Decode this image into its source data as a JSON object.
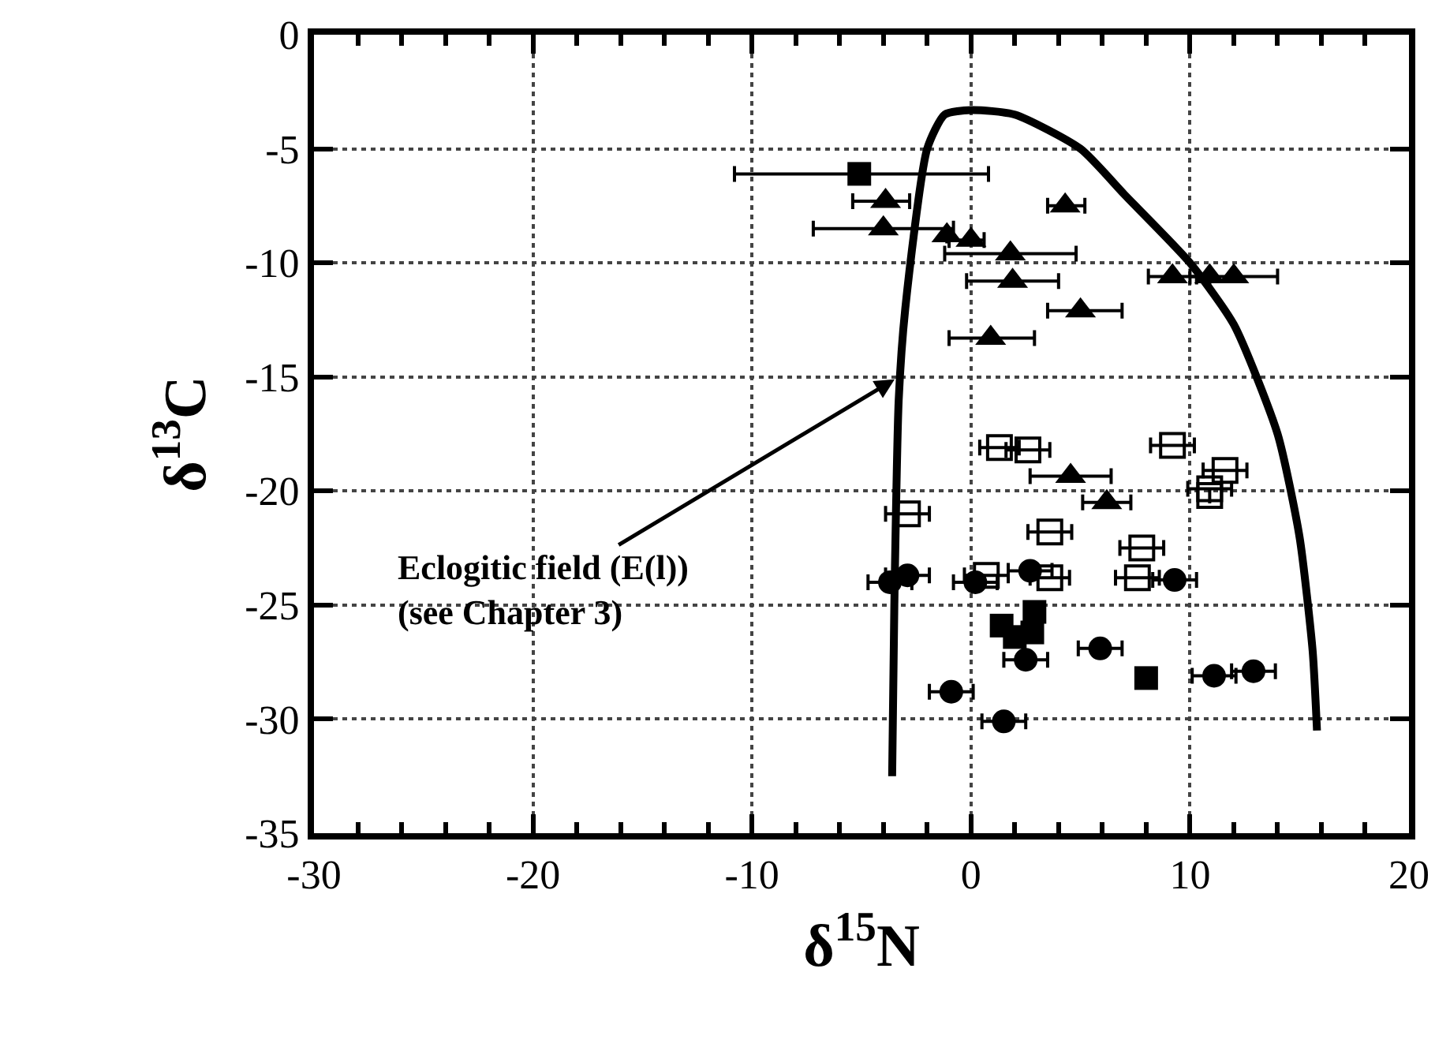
{
  "chart_data": {
    "type": "scatter",
    "xlabel": "δ$^{15}$N",
    "ylabel": "δ$^{13}$C",
    "xlim": [
      -30,
      20
    ],
    "xticks": [
      -30,
      -20,
      -10,
      0,
      10,
      20
    ],
    "ylim": [
      -35,
      0
    ],
    "yticks": [
      0,
      -5,
      -10,
      -15,
      -20,
      -25,
      -30,
      -35
    ],
    "grid": true,
    "annotations": [
      {
        "text": "Eclogitic field (E(l))\n(see Chapter 3)",
        "x": -3.3,
        "y": -15
      }
    ],
    "series": [
      {
        "marker": "triangle",
        "color": "#000000",
        "x": [
          -3.9,
          -4.0,
          -1.1,
          0.0,
          4.3,
          1.8,
          1.9,
          5.0,
          0.9,
          9.2,
          10.9,
          12.0,
          4.55,
          6.2
        ],
        "values": [
          -7.3,
          -8.5,
          -8.8,
          -9.0,
          -7.5,
          -9.6,
          -10.8,
          -12.1,
          -13.3,
          -10.6,
          -10.6,
          -10.6,
          -19.35,
          -20.5
        ],
        "xerrors": [
          [
            -5.4,
            -2.8
          ],
          [
            -7.2,
            -0.8
          ],
          null,
          [
            -1.0,
            0.6
          ],
          [
            3.5,
            5.2
          ],
          [
            -1.2,
            4.8
          ],
          [
            -0.2,
            4.0
          ],
          [
            3.5,
            6.9
          ],
          [
            -1.0,
            2.9
          ],
          [
            8.1,
            10.3
          ],
          null,
          [
            10.0,
            14.0
          ],
          [
            2.7,
            6.4
          ],
          1.1
        ]
      },
      {
        "marker": "square-open",
        "color": "#000000",
        "x": [
          1.3,
          2.6,
          9.2,
          11.6,
          10.9,
          10.9,
          -2.9,
          3.6,
          7.8,
          7.6,
          0.7,
          3.6
        ],
        "values": [
          -18.1,
          -18.2,
          -18.0,
          -19.1,
          -19.9,
          -20.2,
          -21.0,
          -21.8,
          -22.5,
          -23.8,
          -23.7,
          -23.8
        ],
        "xerrors": [
          0.9,
          1.0,
          1.0,
          1.0,
          1.0,
          null,
          1.0,
          1.0,
          1.0,
          1.0,
          1.0,
          0.9
        ]
      },
      {
        "marker": "circle",
        "color": "#000000",
        "x": [
          -3.7,
          -2.9,
          0.2,
          2.7,
          9.3,
          5.9,
          2.5,
          11.1,
          12.9,
          -0.9,
          1.5
        ],
        "values": [
          -24.0,
          -23.7,
          -24.0,
          -23.5,
          -23.9,
          -26.9,
          -27.4,
          -28.1,
          -27.9,
          -28.8,
          -30.1
        ],
        "xerrors": [
          1.0,
          1.0,
          1.0,
          1.0,
          1.0,
          1.0,
          1.0,
          1.0,
          1.0,
          1.0,
          1.0
        ]
      },
      {
        "marker": "square",
        "color": "#000000",
        "x": [
          -5.1,
          8.0,
          1.4,
          2.9,
          2.0,
          2.8
        ],
        "values": [
          -6.1,
          -28.2,
          -25.9,
          -25.3,
          -26.4,
          -26.2
        ],
        "xerrors": [
          [
            -10.8,
            0.8
          ],
          null,
          null,
          null,
          null,
          null
        ]
      },
      {
        "type": "line",
        "marker": "none",
        "color": "#000000",
        "x": [
          -3.6,
          -3.5,
          -3.3,
          -3.0,
          -2.0,
          -1.2,
          0,
          2,
          5,
          7,
          10,
          12,
          14,
          15,
          15.6,
          15.8
        ],
        "values": [
          -32.5,
          -25,
          -16,
          -12,
          -5,
          -3.5,
          -3.3,
          -3.5,
          -5,
          -7,
          -10,
          -12.7,
          -17.5,
          -22,
          -27,
          -30.5
        ]
      }
    ]
  }
}
